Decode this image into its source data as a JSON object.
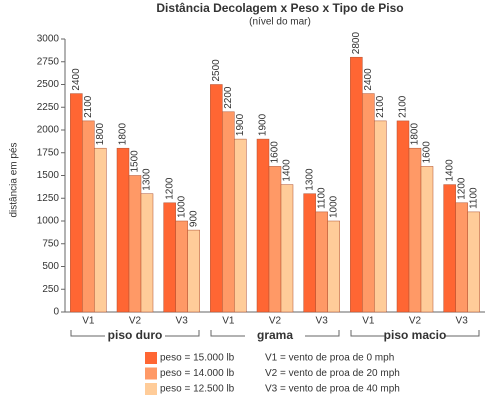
{
  "chart_data": {
    "type": "bar",
    "title": "Distância Decolagem x Peso x Tipo de Piso",
    "subtitle": "(nível do mar)",
    "y_label": "distância em pés",
    "categories": [
      "V1",
      "V2",
      "V3",
      "V1",
      "V2",
      "V3",
      "V1",
      "V2",
      "V3"
    ],
    "groups": [
      "piso duro",
      "grama",
      "piso macio"
    ],
    "series": [
      {
        "name": "peso = 15.000 lb",
        "color": "#ff6633",
        "values": [
          2400,
          1800,
          1200,
          2500,
          1900,
          1300,
          2800,
          2100,
          1400
        ]
      },
      {
        "name": "peso = 14.000 lb",
        "color": "#ff9966",
        "values": [
          2100,
          1500,
          1000,
          2200,
          1600,
          1100,
          2400,
          1800,
          1200
        ]
      },
      {
        "name": "peso = 12.500 lb",
        "color": "#ffcc99",
        "values": [
          1800,
          1300,
          900,
          1900,
          1400,
          1000,
          2100,
          1600,
          1100
        ]
      }
    ],
    "legend_notes": [
      "V1 = vento de proa de 0 mph",
      "V2 = vento de proa de 20 mph",
      "V3 = vento de proa de 40 mph"
    ],
    "ylim": [
      0,
      3000
    ],
    "yticks": [
      0,
      250,
      500,
      750,
      1000,
      1250,
      1500,
      1750,
      2000,
      2250,
      2500,
      2750,
      3000
    ],
    "grid": false
  }
}
